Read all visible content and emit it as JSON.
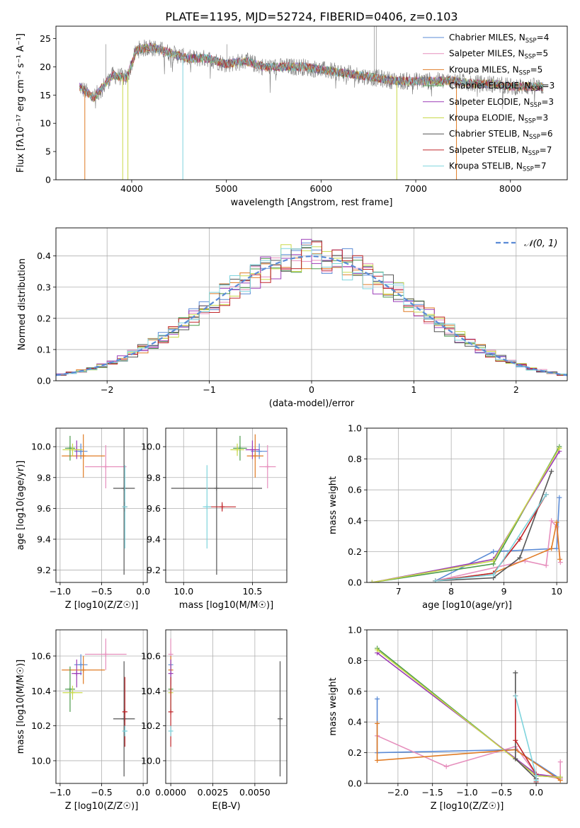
{
  "figure_title": "PLATE=1195, MJD=52724, FIBERID=0406, z=0.103",
  "colors": {
    "Chabrier MILES": "#5b8bd6",
    "Salpeter MILES": "#e68fbd",
    "Kroupa MILES": "#e07b24",
    "Chabrier ELODIE": "#4c9a4c",
    "Salpeter ELODIE": "#9b3cb7",
    "Kroupa ELODIE": "#c9d94a",
    "Chabrier STELIB": "#555555",
    "Salpeter STELIB": "#c0262a",
    "Kroupa STELIB": "#7fd4dd"
  },
  "chart_data": [
    {
      "id": "spectrum",
      "type": "line",
      "title": "PLATE=1195, MJD=52724, FIBERID=0406, z=0.103",
      "xlabel": "wavelength [Angstrom, rest frame]",
      "ylabel": "Flux [fλ10⁻¹⁷ erg cm⁻² s⁻¹ A⁻¹]",
      "xlim": [
        3200,
        8600
      ],
      "ylim": [
        0,
        27.2
      ],
      "xticks": [
        4000,
        5000,
        6000,
        7000,
        8000
      ],
      "yticks": [
        0,
        5,
        10,
        15,
        20,
        25
      ],
      "grid": false,
      "legend_position": "top-right",
      "legend": [
        {
          "name": "Chabrier MILES",
          "nssp": "4"
        },
        {
          "name": "Salpeter MILES",
          "nssp": "5"
        },
        {
          "name": "Kroupa MILES",
          "nssp": "5"
        },
        {
          "name": "Chabrier ELODIE",
          "nssp": "3"
        },
        {
          "name": "Salpeter ELODIE",
          "nssp": "3"
        },
        {
          "name": "Kroupa ELODIE",
          "nssp": "3"
        },
        {
          "name": "Chabrier STELIB",
          "nssp": "6"
        },
        {
          "name": "Salpeter STELIB",
          "nssp": "7"
        },
        {
          "name": "Kroupa STELIB",
          "nssp": "7"
        }
      ],
      "data_envelope": {
        "x": [
          3450,
          3600,
          3800,
          3950,
          4050,
          4200,
          4400,
          4600,
          4800,
          5000,
          5200,
          5400,
          5600,
          5800,
          6000,
          6200,
          6400,
          6600,
          6800,
          7000,
          7200,
          7400,
          7600,
          7800,
          8000,
          8200,
          8350
        ],
        "y": [
          16.5,
          14.5,
          18.5,
          18.0,
          23.0,
          23.5,
          22.5,
          21.5,
          21.5,
          20.5,
          21.0,
          20.0,
          20.0,
          20.0,
          19.5,
          19.0,
          18.5,
          18.0,
          17.5,
          17.5,
          17.5,
          17.5,
          17.0,
          17.0,
          16.5,
          16.5,
          16.5
        ]
      }
    },
    {
      "id": "residual-hist",
      "type": "line",
      "xlabel": "(data-model)/error",
      "ylabel": "Normed distribution",
      "xlim": [
        -2.5,
        2.5
      ],
      "ylim": [
        0,
        0.49
      ],
      "xticks": [
        -2,
        -1,
        0,
        1,
        2
      ],
      "yticks": [
        0.0,
        0.1,
        0.2,
        0.3,
        0.4
      ],
      "grid": true,
      "legend_position": "top-right",
      "legend": [
        {
          "name": "N(0,1)",
          "style": "dashed"
        }
      ],
      "gaussian": {
        "mean": 0,
        "sigma": 1
      },
      "bins": {
        "start": -2.5,
        "width": 0.1,
        "count": 50
      }
    },
    {
      "id": "age-vs-z",
      "type": "scatter",
      "xlabel": "Z [log10(Z/Z☉)]",
      "ylabel": "age  [log10(age/yr)]",
      "xlim": [
        -1.05,
        0.05
      ],
      "ylim": [
        9.12,
        10.12
      ],
      "xticks": [
        -1.0,
        -0.5,
        0.0
      ],
      "yticks": [
        9.2,
        9.4,
        9.6,
        9.8,
        10.0
      ],
      "grid": true,
      "points": [
        {
          "series": "Chabrier MILES",
          "x": -0.75,
          "y": 9.97,
          "xerr": 0.08,
          "yerr": 0.05
        },
        {
          "series": "Salpeter MILES",
          "x": -0.45,
          "y": 9.87,
          "xerr": 0.25,
          "yerr": 0.14
        },
        {
          "series": "Kroupa MILES",
          "x": -0.72,
          "y": 9.94,
          "xerr": 0.26,
          "yerr": 0.14
        },
        {
          "series": "Chabrier ELODIE",
          "x": -0.88,
          "y": 9.99,
          "xerr": 0.06,
          "yerr": 0.08
        },
        {
          "series": "Salpeter ELODIE",
          "x": -0.8,
          "y": 9.98,
          "xerr": 0.06,
          "yerr": 0.06
        },
        {
          "series": "Kroupa ELODIE",
          "x": -0.85,
          "y": 9.98,
          "xerr": 0.12,
          "yerr": 0.04
        },
        {
          "series": "Chabrier STELIB",
          "x": -0.23,
          "y": 9.73,
          "xerr": 0.13,
          "yerr": 0.56
        },
        {
          "series": "Salpeter STELIB",
          "x": -0.22,
          "y": 9.61,
          "xerr": 0.03,
          "yerr": 0.03
        },
        {
          "series": "Kroupa STELIB",
          "x": -0.22,
          "y": 9.61,
          "xerr": 0.03,
          "yerr": 0.27
        }
      ]
    },
    {
      "id": "age-vs-mass",
      "type": "scatter",
      "xlabel": "mass [log10(M/M☉)]",
      "ylabel": "",
      "xlim": [
        9.87,
        10.75
      ],
      "ylim": [
        9.12,
        10.12
      ],
      "xticks": [
        10.0,
        10.5
      ],
      "yticks": [
        9.2,
        9.4,
        9.6,
        9.8,
        10.0
      ],
      "grid": true,
      "points": [
        {
          "series": "Chabrier MILES",
          "x": 10.55,
          "y": 9.97,
          "xerr": 0.06,
          "yerr": 0.05
        },
        {
          "series": "Salpeter MILES",
          "x": 10.61,
          "y": 9.87,
          "xerr": 0.06,
          "yerr": 0.14
        },
        {
          "series": "Kroupa MILES",
          "x": 10.52,
          "y": 9.94,
          "xerr": 0.06,
          "yerr": 0.14
        },
        {
          "series": "Chabrier ELODIE",
          "x": 10.41,
          "y": 9.99,
          "xerr": 0.05,
          "yerr": 0.08
        },
        {
          "series": "Salpeter ELODIE",
          "x": 10.5,
          "y": 9.98,
          "xerr": 0.05,
          "yerr": 0.06
        },
        {
          "series": "Kroupa ELODIE",
          "x": 10.39,
          "y": 9.98,
          "xerr": 0.05,
          "yerr": 0.04
        },
        {
          "series": "Chabrier STELIB",
          "x": 10.24,
          "y": 9.73,
          "xerr": 0.33,
          "yerr": 0.56
        },
        {
          "series": "Salpeter STELIB",
          "x": 10.28,
          "y": 9.61,
          "xerr": 0.1,
          "yerr": 0.03
        },
        {
          "series": "Kroupa STELIB",
          "x": 10.17,
          "y": 9.61,
          "xerr": 0.03,
          "yerr": 0.27
        }
      ]
    },
    {
      "id": "weight-vs-age",
      "type": "line",
      "xlabel": "age  [log10(age/yr)]",
      "ylabel": "mass weight",
      "xlim": [
        6.4,
        10.2
      ],
      "ylim": [
        0,
        1.0
      ],
      "xticks": [
        7,
        8,
        9,
        10
      ],
      "yticks": [
        0.0,
        0.2,
        0.4,
        0.6,
        0.8,
        1.0
      ],
      "grid": true,
      "series": [
        {
          "name": "Chabrier MILES",
          "x": [
            7.7,
            8.8,
            10.0,
            10.05
          ],
          "y": [
            0.01,
            0.2,
            0.22,
            0.55
          ]
        },
        {
          "name": "Salpeter MILES",
          "x": [
            7.7,
            9.4,
            9.8,
            9.9,
            10.0,
            10.07
          ],
          "y": [
            0.01,
            0.14,
            0.11,
            0.4,
            0.36,
            0.13
          ]
        },
        {
          "name": "Kroupa MILES",
          "x": [
            7.7,
            8.8,
            9.9,
            10.0,
            10.06
          ],
          "y": [
            0.01,
            0.06,
            0.22,
            0.39,
            0.15
          ]
        },
        {
          "name": "Chabrier ELODIE",
          "x": [
            6.5,
            8.8,
            10.05
          ],
          "y": [
            0.0,
            0.12,
            0.88
          ]
        },
        {
          "name": "Salpeter ELODIE",
          "x": [
            6.5,
            8.8,
            10.05
          ],
          "y": [
            0.0,
            0.15,
            0.85
          ]
        },
        {
          "name": "Kroupa ELODIE",
          "x": [
            6.5,
            8.8,
            10.05
          ],
          "y": [
            0.0,
            0.14,
            0.87
          ]
        },
        {
          "name": "Chabrier STELIB",
          "x": [
            7.7,
            8.8,
            9.3,
            9.9
          ],
          "y": [
            0.01,
            0.03,
            0.16,
            0.72
          ]
        },
        {
          "name": "Salpeter STELIB",
          "x": [
            7.7,
            8.8,
            9.3,
            9.8
          ],
          "y": [
            0.01,
            0.06,
            0.28,
            0.57
          ]
        },
        {
          "name": "Kroupa STELIB",
          "x": [
            7.7,
            8.8,
            9.8
          ],
          "y": [
            0.01,
            0.05,
            0.57
          ]
        }
      ]
    },
    {
      "id": "mass-vs-z",
      "type": "scatter",
      "xlabel": "Z [log10(Z/Z☉)]",
      "ylabel": "mass [log10(M/M☉)]",
      "xlim": [
        -1.05,
        0.05
      ],
      "ylim": [
        9.87,
        10.75
      ],
      "xticks": [
        -1.0,
        -0.5,
        0.0
      ],
      "yticks": [
        10.0,
        10.2,
        10.4,
        10.6
      ],
      "grid": true,
      "points": [
        {
          "series": "Chabrier MILES",
          "x": -0.75,
          "y": 10.55,
          "xerr": 0.08,
          "yerr": 0.06
        },
        {
          "series": "Salpeter MILES",
          "x": -0.45,
          "y": 10.61,
          "xerr": 0.25,
          "yerr": 0.09
        },
        {
          "series": "Kroupa MILES",
          "x": -0.72,
          "y": 10.52,
          "xerr": 0.26,
          "yerr": 0.08
        },
        {
          "series": "Chabrier ELODIE",
          "x": -0.88,
          "y": 10.41,
          "xerr": 0.06,
          "yerr": 0.13
        },
        {
          "series": "Salpeter ELODIE",
          "x": -0.8,
          "y": 10.5,
          "xerr": 0.06,
          "yerr": 0.08
        },
        {
          "series": "Kroupa ELODIE",
          "x": -0.85,
          "y": 10.39,
          "xerr": 0.12,
          "yerr": 0.04
        },
        {
          "series": "Chabrier STELIB",
          "x": -0.23,
          "y": 10.24,
          "xerr": 0.13,
          "yerr": 0.33
        },
        {
          "series": "Salpeter STELIB",
          "x": -0.22,
          "y": 10.28,
          "xerr": 0.03,
          "yerr": 0.2
        },
        {
          "series": "Kroupa STELIB",
          "x": -0.22,
          "y": 10.17,
          "xerr": 0.03,
          "yerr": 0.03
        }
      ]
    },
    {
      "id": "mass-vs-ebv",
      "type": "scatter",
      "xlabel": "E(B-V)",
      "ylabel": "",
      "xlim": [
        -0.0003,
        0.0069
      ],
      "ylim": [
        9.87,
        10.75
      ],
      "xticks": [
        0.0,
        0.0025,
        0.005
      ],
      "xticklabels": [
        "0.0000",
        "0.0025",
        "0.0050"
      ],
      "yticks": [
        10.0,
        10.2,
        10.4,
        10.6
      ],
      "grid": true,
      "points": [
        {
          "series": "Chabrier MILES",
          "x": 0.0,
          "y": 10.55,
          "xerr": 0,
          "yerr": 0.06
        },
        {
          "series": "Salpeter MILES",
          "x": 0.0,
          "y": 10.61,
          "xerr": 0,
          "yerr": 0.09
        },
        {
          "series": "Kroupa MILES",
          "x": 0.0,
          "y": 10.52,
          "xerr": 0,
          "yerr": 0.08
        },
        {
          "series": "Chabrier ELODIE",
          "x": 0.0,
          "y": 10.41,
          "xerr": 0,
          "yerr": 0.13
        },
        {
          "series": "Salpeter ELODIE",
          "x": 0.0,
          "y": 10.5,
          "xerr": 0,
          "yerr": 0.08
        },
        {
          "series": "Kroupa ELODIE",
          "x": 0.0,
          "y": 10.39,
          "xerr": 0,
          "yerr": 0.04
        },
        {
          "series": "Chabrier STELIB",
          "x": 0.0065,
          "y": 10.24,
          "xerr": 0,
          "yerr": 0.33
        },
        {
          "series": "Salpeter STELIB",
          "x": 0.0,
          "y": 10.28,
          "xerr": 0,
          "yerr": 0.2
        },
        {
          "series": "Kroupa STELIB",
          "x": 0.0,
          "y": 10.17,
          "xerr": 0,
          "yerr": 0.03
        }
      ]
    },
    {
      "id": "weight-vs-z",
      "type": "line",
      "xlabel": "Z [log10(Z/Z☉)]",
      "ylabel": "mass weight",
      "xlim": [
        -2.45,
        0.45
      ],
      "ylim": [
        0,
        1.0
      ],
      "xticks": [
        -2.0,
        -1.5,
        -1.0,
        -0.5,
        0.0
      ],
      "yticks": [
        0.0,
        0.2,
        0.4,
        0.6,
        0.8,
        1.0
      ],
      "grid": true,
      "series": [
        {
          "name": "Chabrier MILES",
          "x": [
            -2.3,
            -2.3,
            -0.3,
            0.35
          ],
          "y": [
            0.55,
            0.2,
            0.22,
            0.03
          ]
        },
        {
          "name": "Salpeter MILES",
          "x": [
            -2.3,
            -1.3,
            -0.3,
            0.0,
            0.35,
            0.35
          ],
          "y": [
            0.31,
            0.11,
            0.24,
            0.06,
            0.03,
            0.14
          ]
        },
        {
          "name": "Kroupa MILES",
          "x": [
            -2.3,
            -2.3,
            -0.3,
            0.35
          ],
          "y": [
            0.39,
            0.15,
            0.22,
            0.02
          ]
        },
        {
          "name": "Chabrier ELODIE",
          "x": [
            -2.3,
            0.0,
            0.35
          ],
          "y": [
            0.88,
            0.05,
            0.04
          ]
        },
        {
          "name": "Salpeter ELODIE",
          "x": [
            -2.3,
            0.0,
            0.35
          ],
          "y": [
            0.85,
            0.06,
            0.04
          ]
        },
        {
          "name": "Kroupa ELODIE",
          "x": [
            -2.3,
            0.0,
            0.35
          ],
          "y": [
            0.87,
            0.05,
            0.04
          ]
        },
        {
          "name": "Chabrier STELIB",
          "x": [
            -0.3,
            -0.3,
            0.0,
            0.0
          ],
          "y": [
            0.72,
            0.16,
            0.03,
            0.0
          ]
        },
        {
          "name": "Salpeter STELIB",
          "x": [
            -0.3,
            -0.3,
            0.0,
            0.0
          ],
          "y": [
            0.57,
            0.28,
            0.06,
            0.01
          ]
        },
        {
          "name": "Kroupa STELIB",
          "x": [
            -0.3,
            0.0,
            0.0
          ],
          "y": [
            0.57,
            0.05,
            0.02
          ]
        }
      ]
    }
  ]
}
